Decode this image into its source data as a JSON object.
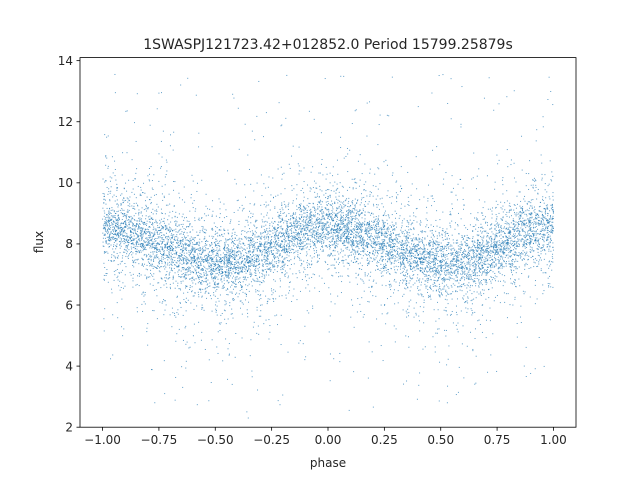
{
  "chart_data": {
    "type": "scatter",
    "title": "1SWASPJ121723.42+012852.0 Period 15799.25879s",
    "xlabel": "phase",
    "ylabel": "flux",
    "xlim": [
      -1.1,
      1.1
    ],
    "ylim": [
      2.0,
      14.1
    ],
    "grid": false,
    "legend": "none",
    "marker_color": "#1f77b4",
    "x_ticks": [
      -1.0,
      -0.75,
      -0.5,
      -0.25,
      0.0,
      0.25,
      0.5,
      0.75,
      1.0
    ],
    "x_tick_labels": [
      "−1.00",
      "−0.75",
      "−0.50",
      "−0.25",
      "0.00",
      "0.25",
      "0.50",
      "0.75",
      "1.00"
    ],
    "y_ticks": [
      2,
      4,
      6,
      8,
      10,
      12,
      14
    ],
    "y_tick_labels": [
      "2",
      "4",
      "6",
      "8",
      "10",
      "12",
      "14"
    ],
    "series": [
      {
        "x": [
          -1.0,
          -0.875,
          -0.75,
          -0.625,
          -0.5,
          -0.375,
          -0.25,
          -0.125,
          0.0,
          0.125,
          0.25,
          0.375,
          0.5,
          0.625,
          0.75,
          0.875,
          1.0
        ],
        "y": [
          8.6,
          8.4,
          8.0,
          7.6,
          7.3,
          7.4,
          7.9,
          8.4,
          8.6,
          8.4,
          8.0,
          7.6,
          7.3,
          7.4,
          7.9,
          8.4,
          8.6
        ]
      }
    ]
  }
}
